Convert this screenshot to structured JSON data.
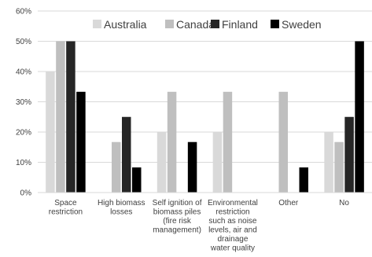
{
  "chart_data": {
    "type": "bar",
    "categories": [
      [
        "Space",
        "restriction"
      ],
      [
        "High biomass",
        "losses"
      ],
      [
        "Self ignition of",
        "biomass piles",
        "(fire risk",
        "management)"
      ],
      [
        "Environmental",
        "restriction",
        "such as noise",
        "levels, air and",
        "drainage",
        "water quality"
      ],
      [
        "Other"
      ],
      [
        "No"
      ]
    ],
    "series": [
      {
        "name": "Australia",
        "color": "#d9d9d9",
        "values": [
          40,
          0,
          20,
          20,
          0,
          20
        ]
      },
      {
        "name": "Canada",
        "color": "#bfbfbf",
        "values": [
          50,
          16.7,
          33.3,
          33.3,
          33.3,
          16.7
        ]
      },
      {
        "name": "Finland",
        "color": "#262626",
        "values": [
          50,
          25,
          0,
          0,
          0,
          25
        ]
      },
      {
        "name": "Sweden",
        "color": "#000000",
        "values": [
          33.3,
          8.3,
          16.7,
          0,
          8.3,
          50
        ]
      }
    ],
    "ylim": [
      0,
      60
    ],
    "yticks": [
      "0%",
      "10%",
      "20%",
      "30%",
      "40%",
      "50%",
      "60%"
    ],
    "grid": true,
    "legend_position": "top-right"
  }
}
